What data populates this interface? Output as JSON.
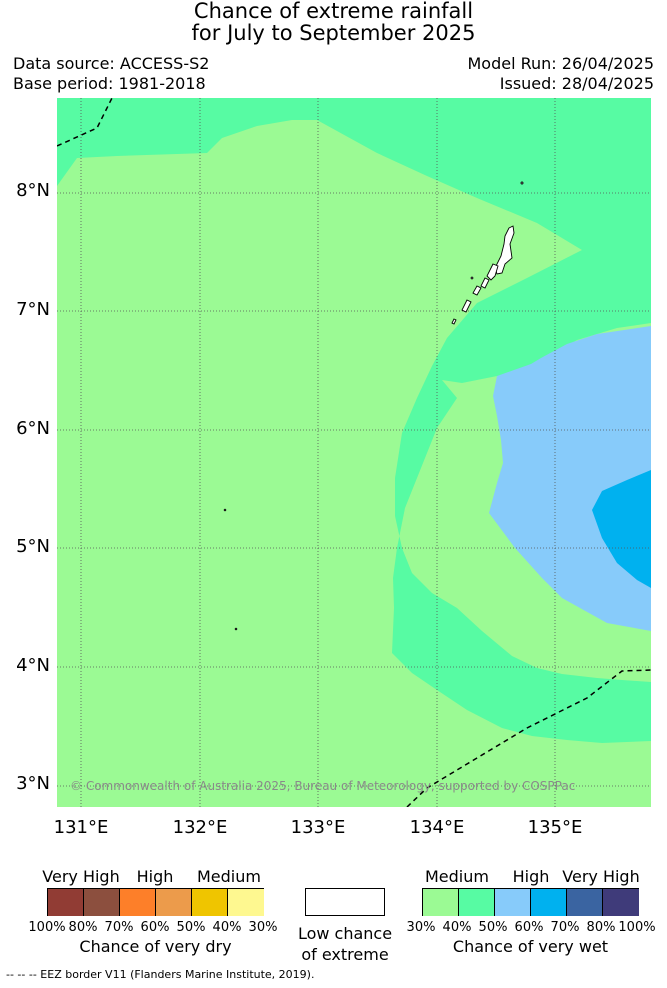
{
  "header": {
    "title_line1": "Chance of extreme rainfall",
    "title_line2": "for July to September 2025",
    "data_source": "Data source: ACCESS-S2",
    "base_period": "Base period: 1981-2018",
    "model_run": "Model Run: 26/04/2025",
    "issued": "Issued: 28/04/2025"
  },
  "map": {
    "lat_labels": [
      "8°N",
      "7°N",
      "6°N",
      "5°N",
      "4°N",
      "3°N"
    ],
    "lon_labels": [
      "131°E",
      "132°E",
      "133°E",
      "134°E",
      "135°E"
    ],
    "copyright": "© Commonwealth of Australia 2025, Bureau of Meteorology, supported by COSPPac",
    "colors": {
      "low": "#ffffff",
      "wet_medium_30_40": "#9bfa94",
      "wet_medium_40_50": "#57fba3",
      "wet_high_50_60": "#87cbfa",
      "wet_high_60_70": "#00b1ef",
      "grid": "#555555",
      "eez_border": "#000000"
    }
  },
  "legend_dry": {
    "categories": [
      "Very High",
      "High",
      "Medium"
    ],
    "percent_labels": [
      "100%",
      "80%",
      "70%",
      "60%",
      "50%",
      "40%",
      "30%"
    ],
    "colors": [
      "#913c34",
      "#8c4f3e",
      "#fd7f29",
      "#ec9b4b",
      "#efc500",
      "#fef890"
    ],
    "title": "Chance of very dry"
  },
  "legend_low": {
    "line1": "Low chance",
    "line2": "of extreme",
    "color": "#ffffff"
  },
  "legend_wet": {
    "categories": [
      "Medium",
      "High",
      "Very High"
    ],
    "percent_labels": [
      "30%",
      "40%",
      "50%",
      "60%",
      "70%",
      "80%",
      "100%"
    ],
    "colors": [
      "#9bfa94",
      "#57fba3",
      "#87cbfa",
      "#00b1ef",
      "#3a64a1",
      "#3f3b7a"
    ],
    "title": "Chance of very wet"
  },
  "footnote": "--  --  -- EEZ border V11 (Flanders Marine Institute, 2019)."
}
